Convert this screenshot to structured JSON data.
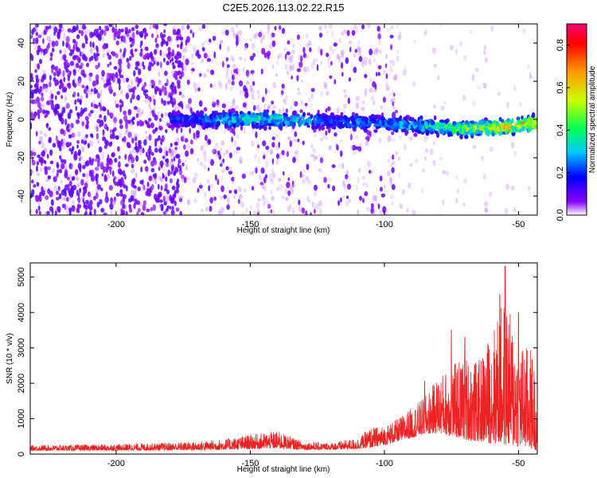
{
  "title": "C2E5.2026.113.02.22.R15",
  "chart_data": [
    {
      "type": "heatmap",
      "name": "spectrogram",
      "xlabel": "Height of straight line (km)",
      "ylabel": "Frequency (Hz)",
      "xlim": [
        -232,
        -43
      ],
      "ylim": [
        -50,
        50
      ],
      "x_ticks": [
        -200,
        -150,
        -100,
        -50
      ],
      "y_ticks": [
        -40,
        -20,
        0,
        20,
        40
      ],
      "grid": false,
      "colorbar": {
        "label": "Normalized spectral amplitude",
        "range": [
          0.0,
          0.9
        ],
        "ticks": [
          0.0,
          0.2,
          0.4,
          0.6,
          0.8
        ],
        "colormap": [
          "#ffffff",
          "#6a00ff",
          "#0000ff",
          "#00ffff",
          "#00ff00",
          "#ffff00",
          "#ff0000",
          "#ff00aa"
        ]
      },
      "signal_band": {
        "x_range": [
          -180,
          -43
        ],
        "center_frequency": [
          0,
          0,
          0,
          -1,
          -2,
          -3,
          -4,
          -5,
          -4,
          -2
        ],
        "center_x": [
          -180,
          -160,
          -140,
          -120,
          -100,
          -90,
          -80,
          -70,
          -55,
          -45
        ],
        "peak_amplitude": [
          0.2,
          0.35,
          0.4,
          0.25,
          0.3,
          0.35,
          0.45,
          0.55,
          0.65,
          0.75
        ]
      },
      "noise_regions": [
        {
          "x": [
            -232,
            -175
          ],
          "level": "dense"
        },
        {
          "x": [
            -175,
            -95
          ],
          "level": "moderate"
        },
        {
          "x": [
            -95,
            -43
          ],
          "level": "sparse"
        }
      ]
    },
    {
      "type": "line",
      "name": "snr",
      "xlabel": "Height of straight line (km)",
      "ylabel": "SNR (10 * v/v)",
      "xlim": [
        -232,
        -43
      ],
      "ylim": [
        0,
        5400
      ],
      "x_ticks": [
        -200,
        -150,
        -100,
        -50
      ],
      "y_ticks": [
        0,
        1000,
        2000,
        3000,
        4000,
        5000
      ],
      "grid": false,
      "color": "#ee2222",
      "envelope": {
        "x": [
          -232,
          -200,
          -170,
          -160,
          -150,
          -140,
          -130,
          -120,
          -110,
          -105,
          -100,
          -95,
          -90,
          -85,
          -80,
          -75,
          -70,
          -65,
          -60,
          -55,
          -50,
          -45,
          -43
        ],
        "upper": [
          250,
          280,
          350,
          420,
          550,
          650,
          350,
          320,
          450,
          750,
          800,
          1000,
          1300,
          1600,
          2200,
          2500,
          2800,
          2600,
          3500,
          4500,
          3200,
          3000,
          1800
        ],
        "lower": [
          100,
          100,
          110,
          120,
          140,
          160,
          120,
          120,
          140,
          180,
          250,
          350,
          450,
          550,
          600,
          500,
          400,
          350,
          300,
          250,
          200,
          150,
          100
        ]
      },
      "peaks": [
        {
          "x": -55,
          "y": 5300
        },
        {
          "x": -57,
          "y": 4500
        },
        {
          "x": -50,
          "y": 4000
        },
        {
          "x": -75,
          "y": 3500
        },
        {
          "x": -70,
          "y": 3300
        },
        {
          "x": -85,
          "y": 2050
        }
      ]
    }
  ]
}
